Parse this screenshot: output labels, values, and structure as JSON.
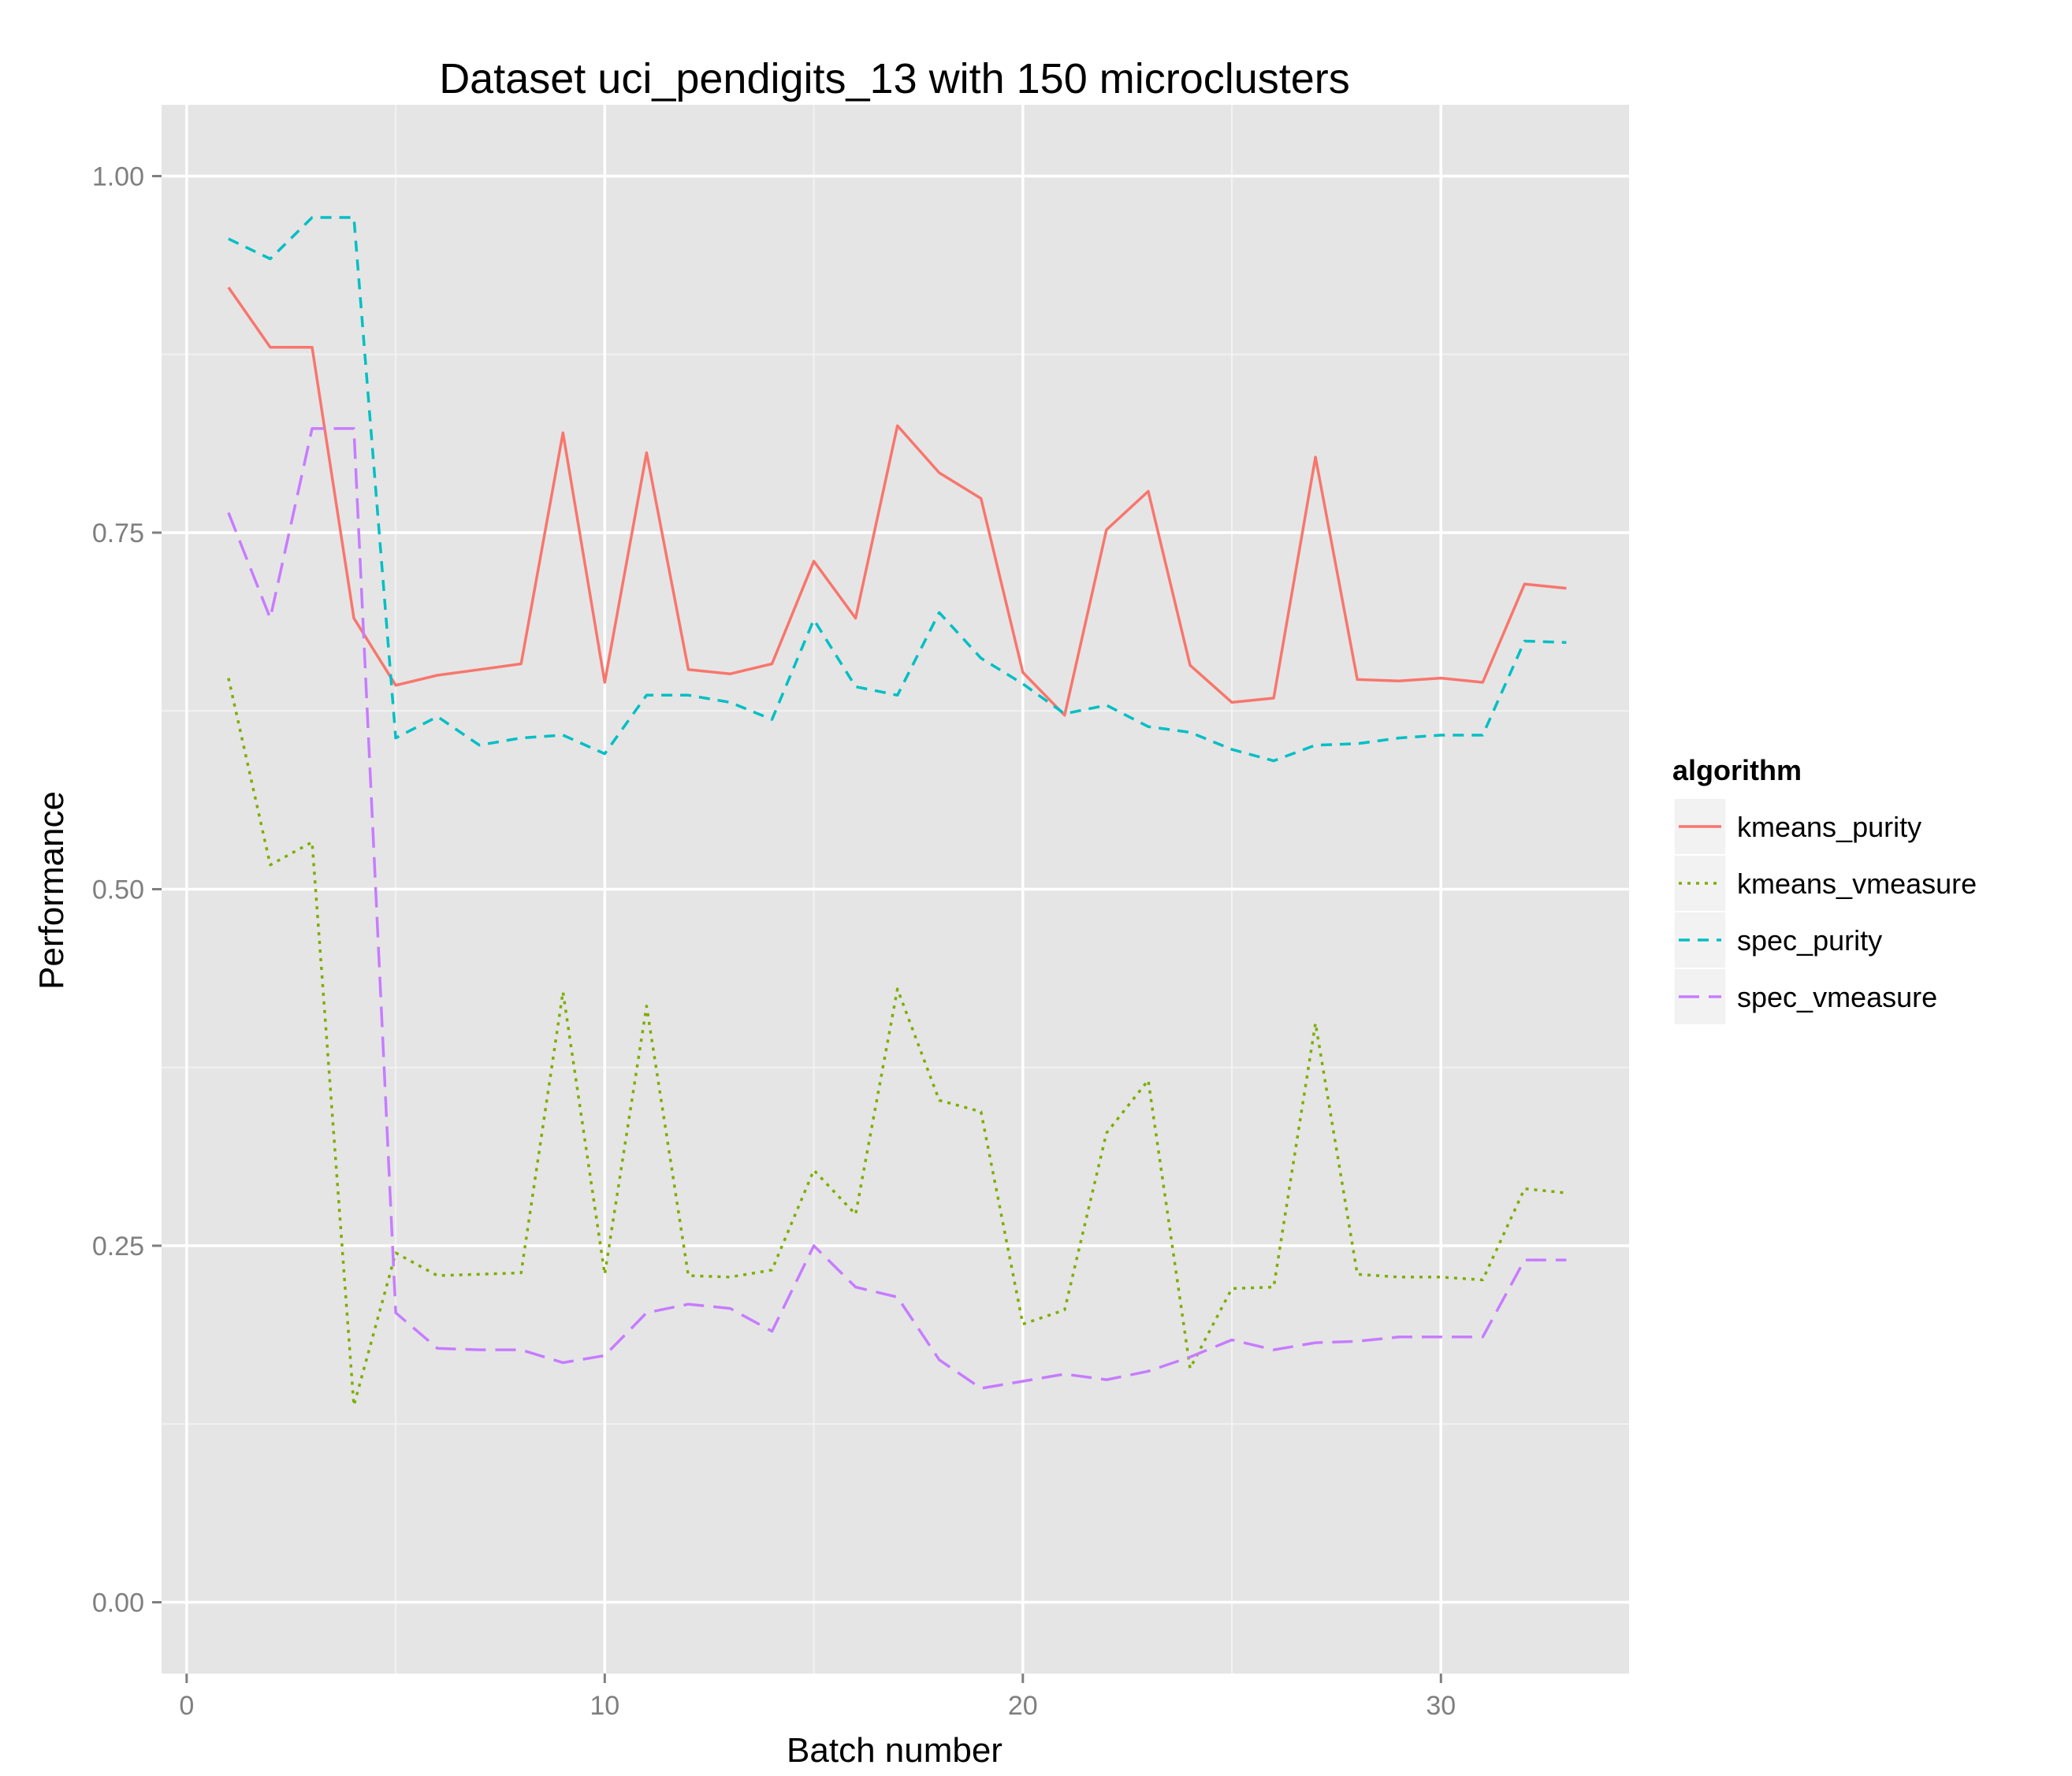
{
  "chart_data": {
    "type": "line",
    "title": "Dataset uci_pendigits_13 with 150 microclusters",
    "xlabel": "Batch number",
    "ylabel": "Performance",
    "xlim": [
      -0.6,
      34.5
    ],
    "ylim": [
      -0.05,
      1.05
    ],
    "x_ticks": [
      0,
      10,
      20,
      30
    ],
    "x_tick_labels": [
      "0",
      "10",
      "20",
      "30"
    ],
    "x_minor_ticks": [
      5,
      15,
      25
    ],
    "y_ticks": [
      0,
      0.25,
      0.5,
      0.75,
      1.0
    ],
    "y_tick_labels": [
      "0.00",
      "0.25",
      "0.50",
      "0.75",
      "1.00"
    ],
    "y_minor_ticks": [
      0.125,
      0.375,
      0.625,
      0.875
    ],
    "grid": true,
    "panel_background": "#e5e5e5",
    "legend": {
      "title": "algorithm",
      "position": "right"
    },
    "x": [
      1,
      2,
      3,
      4,
      5,
      6,
      7,
      8,
      9,
      10,
      11,
      12,
      13,
      14,
      15,
      16,
      17,
      18,
      19,
      20,
      21,
      22,
      23,
      24,
      25,
      26,
      27,
      28,
      29,
      30,
      31,
      32,
      33
    ],
    "series": [
      {
        "name": "kmeans_purity",
        "color": "#f8766d",
        "dash": "solid",
        "values": [
          0.922,
          0.88,
          0.88,
          0.69,
          0.643,
          0.65,
          0.654,
          0.658,
          0.82,
          0.645,
          0.806,
          0.654,
          0.651,
          0.658,
          0.73,
          0.69,
          0.825,
          0.792,
          0.774,
          0.652,
          0.622,
          0.752,
          0.779,
          0.657,
          0.631,
          0.634,
          0.803,
          0.647,
          0.646,
          0.648,
          0.645,
          0.714,
          0.711
        ]
      },
      {
        "name": "kmeans_vmeasure",
        "color": "#7cae00",
        "dash": "dotted",
        "values": [
          0.648,
          0.517,
          0.533,
          0.138,
          0.245,
          0.229,
          0.23,
          0.231,
          0.428,
          0.23,
          0.418,
          0.229,
          0.228,
          0.233,
          0.303,
          0.272,
          0.43,
          0.352,
          0.344,
          0.195,
          0.205,
          0.329,
          0.366,
          0.164,
          0.22,
          0.221,
          0.406,
          0.23,
          0.228,
          0.228,
          0.226,
          0.29,
          0.287
        ]
      },
      {
        "name": "spec_purity",
        "color": "#00bfc4",
        "dash": "dashed",
        "values": [
          0.956,
          0.942,
          0.971,
          0.971,
          0.606,
          0.621,
          0.601,
          0.606,
          0.608,
          0.595,
          0.636,
          0.636,
          0.631,
          0.619,
          0.689,
          0.642,
          0.636,
          0.694,
          0.662,
          0.644,
          0.623,
          0.629,
          0.614,
          0.61,
          0.598,
          0.59,
          0.601,
          0.602,
          0.606,
          0.608,
          0.608,
          0.674,
          0.673
        ]
      },
      {
        "name": "spec_vmeasure",
        "color": "#c77cff",
        "dash": "longdash",
        "values": [
          0.764,
          0.69,
          0.823,
          0.823,
          0.203,
          0.178,
          0.177,
          0.177,
          0.168,
          0.173,
          0.203,
          0.209,
          0.206,
          0.19,
          0.25,
          0.221,
          0.214,
          0.17,
          0.15,
          0.155,
          0.16,
          0.156,
          0.162,
          0.172,
          0.184,
          0.177,
          0.182,
          0.183,
          0.186,
          0.186,
          0.186,
          0.24,
          0.24
        ]
      }
    ]
  }
}
